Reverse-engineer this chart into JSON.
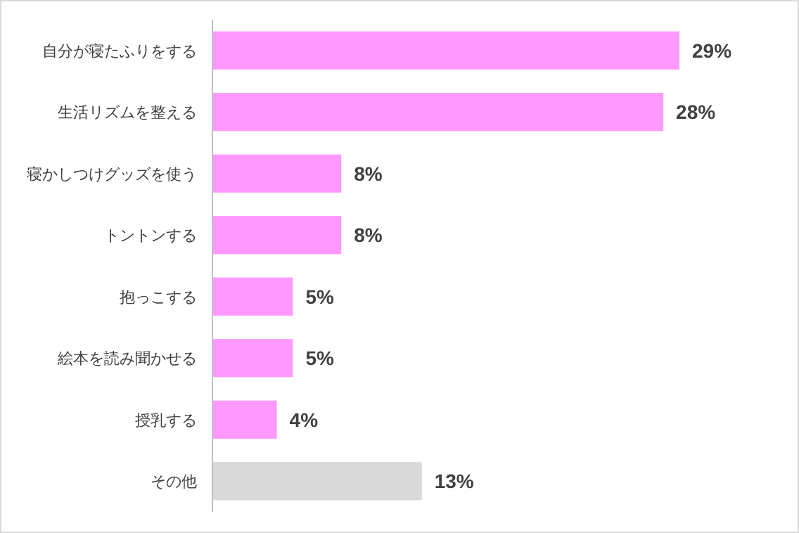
{
  "chart_data": {
    "type": "bar",
    "orientation": "horizontal",
    "categories": [
      "自分が寝たふりをする",
      "生活リズムを整える",
      "寝かしつけグッズを使う",
      "トントンする",
      "抱っこする",
      "絵本を読み聞かせる",
      "授乳する",
      "その他"
    ],
    "values": [
      29,
      28,
      8,
      8,
      5,
      5,
      4,
      13
    ],
    "colors": [
      "#ff99ff",
      "#ff99ff",
      "#ff99ff",
      "#ff99ff",
      "#ff99ff",
      "#ff99ff",
      "#ff99ff",
      "#d9d9d9"
    ],
    "value_labels": [
      "29%",
      "28%",
      "8%",
      "8%",
      "5%",
      "5%",
      "4%",
      "13%"
    ]
  }
}
